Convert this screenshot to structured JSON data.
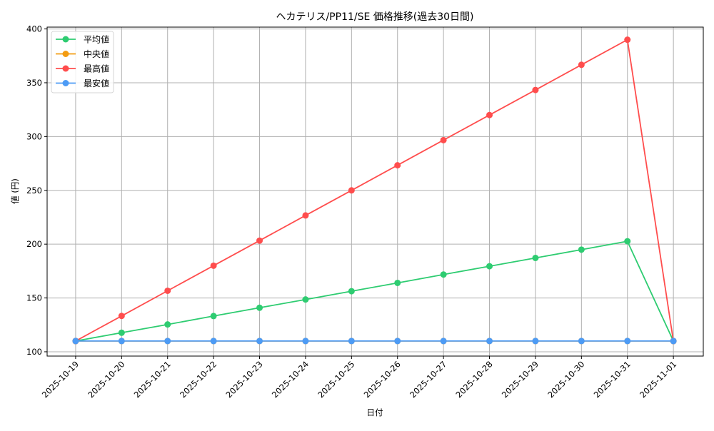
{
  "chart_data": {
    "type": "line",
    "title": "ヘカテリス/PP11/SE 価格推移(過去30日間)",
    "xlabel": "日付",
    "ylabel": "値 (円)",
    "categories": [
      "2025-10-19",
      "2025-10-20",
      "2025-10-21",
      "2025-10-22",
      "2025-10-23",
      "2025-10-24",
      "2025-10-25",
      "2025-10-26",
      "2025-10-27",
      "2025-10-28",
      "2025-10-29",
      "2025-10-30",
      "2025-10-31",
      "2025-11-01"
    ],
    "yticks": [
      100,
      150,
      200,
      250,
      300,
      350,
      400
    ],
    "ylim": [
      96,
      401.7
    ],
    "xlim_index": [
      -0.62,
      13.65
    ],
    "grid": true,
    "legend_position": "upper left",
    "series": [
      {
        "name": "平均値",
        "color": "#2ecc71",
        "values": [
          110,
          117.7,
          125.4,
          133.2,
          140.9,
          148.6,
          156.3,
          164.0,
          171.8,
          179.5,
          187.2,
          194.9,
          202.7,
          110
        ]
      },
      {
        "name": "中央値",
        "color": "#f39c12",
        "values": [
          110,
          110,
          110,
          110,
          110,
          110,
          110,
          110,
          110,
          110,
          110,
          110,
          110,
          110
        ]
      },
      {
        "name": "最高値",
        "color": "#ff4d4d",
        "values": [
          110,
          133.3,
          156.7,
          180,
          203.3,
          226.7,
          250,
          273.3,
          296.7,
          320,
          343.3,
          366.7,
          390,
          110
        ]
      },
      {
        "name": "最安値",
        "color": "#4d9bf5",
        "values": [
          110,
          110,
          110,
          110,
          110,
          110,
          110,
          110,
          110,
          110,
          110,
          110,
          110,
          110
        ]
      }
    ]
  }
}
